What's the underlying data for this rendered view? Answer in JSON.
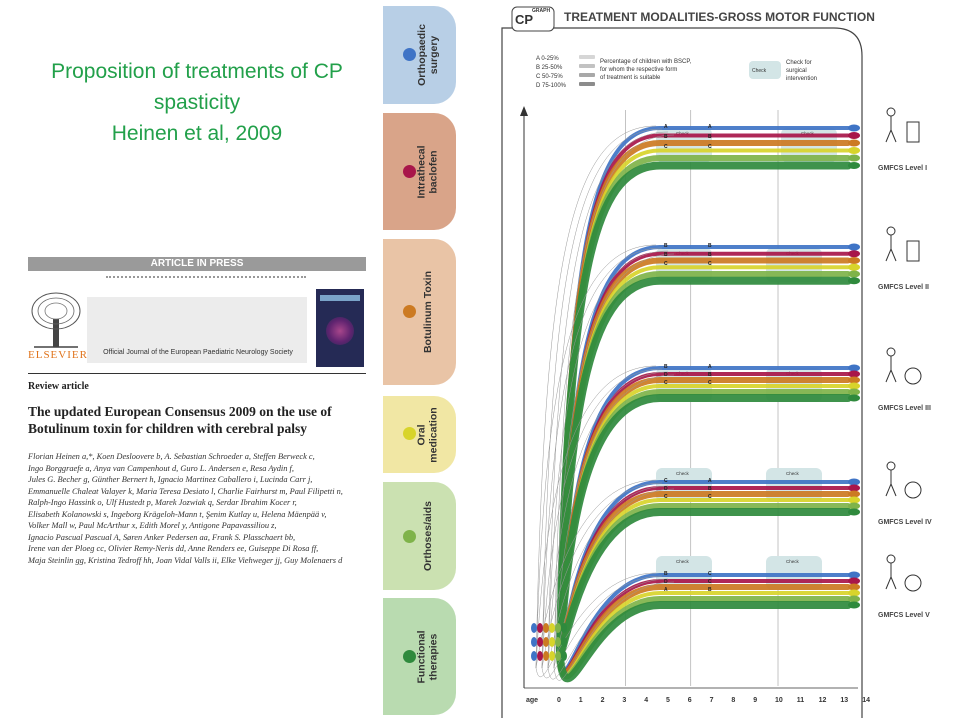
{
  "slide": {
    "title_lines": [
      "Proposition of treatments of CP",
      "spasticity",
      "Heinen et al, 2009"
    ]
  },
  "article": {
    "banner": "ARTICLE IN PRESS",
    "publisher": "ELSEVIER",
    "journal": "Official Journal of the European Paediatric Neurology Society",
    "section": "Review article",
    "title_lines": [
      "The updated European Consensus 2009 on the use of",
      "Botulinum toxin for children with cerebral palsy"
    ],
    "authors": [
      "Florian Heinen a,*, Koen Desloovere b, A. Sebastian Schroeder a, Steffen Berweck c,",
      "Ingo Borggraefe a, Anya van Campenhout d, Guro L. Andersen e, Resa Aydin f,",
      "Jules G. Becher g, Günther Bernert h, Ignacio Martinez Caballero i, Lucinda Carr j,",
      "Emmanuelle Chaleat Valayer k, Maria Teresa Desiato l, Charlie Fairhurst m, Paul Filipetti n,",
      "Ralph-Ingo Hassink o, Ulf Hustedt p, Marek Jozwiak q, Serdar Ibrahim Kocer r,",
      "Elisabeth Kolanowski s, Ingeborg Krägeloh-Mann t, Şenim Kutlay u, Helena Mäenpää v,",
      "Volker Mall w, Paul McArthur x, Edith Morel y, Antigone Papavassiliou z,",
      "Ignacio Pascual Pascual A, Søren Anker Pedersen aa, Frank S. Plasschaert bb,",
      "Irene van der Ploeg cc, Olivier Remy-Neris dd, Anne Renders ee, Guiseppe Di Rosa ff,",
      "Maja Steinlin gg, Kristina Tedroff hh, Joan Vidal Valls ii, Elke Viehweger jj, Guy Molenaers d"
    ]
  },
  "tabs": [
    {
      "label": "Orthopaedic\nsurgery",
      "color": "#b8cfe6",
      "dot": "#3f74c6"
    },
    {
      "label": "Intrathecal\nbaclofen",
      "color": "#d9a489",
      "dot": "#a8164a"
    },
    {
      "label": "Botulinum Toxin",
      "color": "#e9c4a6",
      "dot": "#cc7a22"
    },
    {
      "label": "Oral\nmedication",
      "color": "#f1e7a4",
      "dot": "#d8d42b"
    },
    {
      "label": "Orthoses/aids",
      "color": "#cbe1b1",
      "dot": "#7fb34a"
    },
    {
      "label": "Functional\ntherapies",
      "color": "#b9dbb0",
      "dot": "#2f8a3d"
    }
  ],
  "chart": {
    "logo": "CP",
    "logo_sup": "GRAPH",
    "heading": "TREATMENT MODALITIES-GROSS MOTOR FUNCTION",
    "legend_codes": [
      {
        "code": "A",
        "range": "0-25%"
      },
      {
        "code": "B",
        "range": "25-50%"
      },
      {
        "code": "C",
        "range": "50-75%"
      },
      {
        "code": "D",
        "range": "75-100%"
      }
    ],
    "legend_pct": [
      "Percentage of children with BSCP,",
      "for whom the respective form",
      "of treatment is suitable"
    ],
    "check_label": "Check",
    "check_sup": "SIR",
    "check_desc": [
      "Check for",
      "surgical",
      "intervention"
    ],
    "axis_label": "age",
    "ages": [
      "0",
      "1",
      "2",
      "3",
      "4",
      "5",
      "6",
      "7",
      "8",
      "9",
      "10",
      "11",
      "12",
      "13",
      "14"
    ],
    "levels": [
      "GMFCS Level I",
      "GMFCS Level II",
      "GMFCS Level III",
      "GMFCS Level IV",
      "GMFCS Level V"
    ],
    "colors": {
      "ortho": "#3f74c6",
      "itb": "#a8164a",
      "btx": "#cc7a22",
      "oral": "#d8d42b",
      "orthoses": "#7fb34a",
      "functional": "#2f8a3d",
      "check_box": "#d3e5e6"
    },
    "letter_labels": {
      "level1": [
        [
          "A",
          "A"
        ],
        [
          "B",
          "B"
        ],
        [
          "C",
          "C"
        ]
      ],
      "level2": [
        [
          "B",
          "B"
        ],
        [
          "B",
          "B"
        ],
        [
          "C",
          "C"
        ]
      ],
      "level3": [
        [
          "B",
          "A"
        ],
        [
          "D",
          "B"
        ],
        [
          "C",
          "C"
        ]
      ],
      "level4": [
        [
          "C",
          "A"
        ],
        [
          "D",
          "B"
        ],
        [
          "C",
          "C"
        ]
      ],
      "level5": [
        [
          "B",
          "C"
        ],
        [
          "D",
          "C"
        ],
        [
          "A",
          "B"
        ]
      ]
    }
  }
}
